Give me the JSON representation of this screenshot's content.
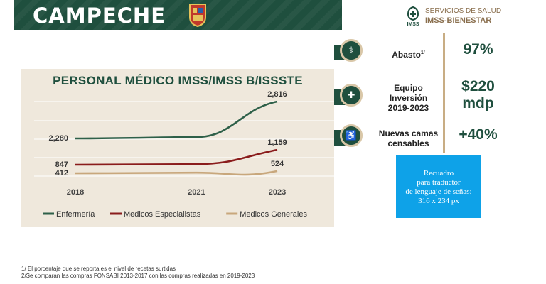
{
  "header": {
    "state": "CAMPECHE"
  },
  "logo": {
    "line1": "SERVICIOS DE SALUD",
    "line2": "IMSS-BIENESTAR",
    "mark": "IMSS"
  },
  "chart_data": {
    "type": "line",
    "title": "PERSONAL MÉDICO IMSS/IMSS B/ISSSTE",
    "x": [
      2018,
      2021,
      2023
    ],
    "x_ticks": [
      "2018",
      "2021",
      "2023"
    ],
    "series": [
      {
        "name": "Enfermería",
        "values": [
          2280,
          2300,
          2816
        ],
        "labels": [
          "2,280",
          "",
          "2,816"
        ],
        "color": "#2e6049"
      },
      {
        "name": "Medicos Especialistas",
        "values": [
          847,
          860,
          1159
        ],
        "labels": [
          "847",
          "",
          "1,159"
        ],
        "color": "#8a1c1c"
      },
      {
        "name": "Medicos Generales",
        "values": [
          412,
          440,
          524
        ],
        "labels": [
          "412",
          "",
          "524"
        ],
        "color": "#c8a77c"
      }
    ],
    "ylim": [
      0,
      3200
    ],
    "grid": true,
    "legend": "bottom"
  },
  "indicators": [
    {
      "icon": "medicine-bottle-icon",
      "glyph": "⚕",
      "label": "Abasto",
      "label_sup": "1/",
      "value": "97%"
    },
    {
      "icon": "medical-equipment-icon",
      "glyph": "✚",
      "label": "Equipo\nInversión\n2019-2023",
      "label_sup": "",
      "value": "$220\nmdp"
    },
    {
      "icon": "hospital-bed-icon",
      "glyph": "♿",
      "label": "Nuevas camas\ncensables",
      "label_sup": "",
      "value": "+40%"
    }
  ],
  "sign_box": {
    "line1": "Recuadro",
    "line2": "para traductor",
    "line3": "de lenguaje de señas:",
    "line4": "316 x 234 px"
  },
  "footnotes": [
    "1/ El porcentaje que se reporta es el nivel de recetas surtidas",
    "2/Se comparan las compras FONSABI 2013-2017 con las compras realizadas en 2019-2023"
  ],
  "colors": {
    "green": "#1f4f3e",
    "gold": "#c8ad84",
    "sky": "#0ea2e8"
  }
}
